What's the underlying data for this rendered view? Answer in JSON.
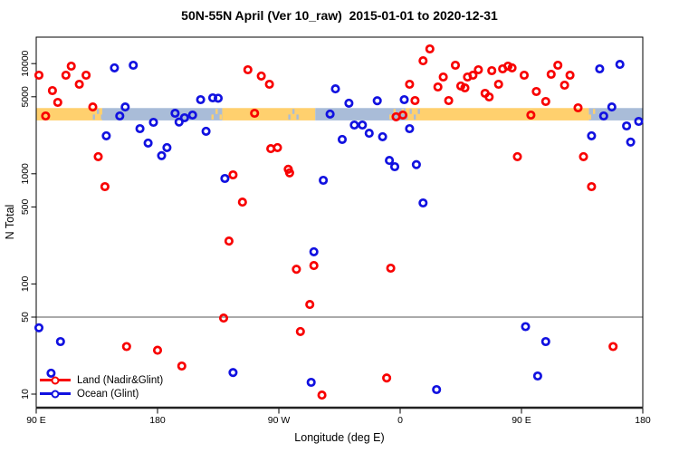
{
  "chart_data": {
    "type": "scatter",
    "title": "50N-55N April (Ver 10_raw)  2015-01-01 to 2020-12-31",
    "xlabel": "Longitude (deg E)",
    "ylabel": "N Total",
    "x_axis": {
      "note": "longitude axis runs eastward from 90E, wrapping past 180 and 0 back to 180",
      "range_deg_continuous": [
        90,
        540
      ],
      "ticks": [
        {
          "deg": 90,
          "label": "90 E"
        },
        {
          "deg": 180,
          "label": "180"
        },
        {
          "deg": 270,
          "label": "90 W"
        },
        {
          "deg": 360,
          "label": "0"
        },
        {
          "deg": 450,
          "label": "90 E"
        },
        {
          "deg": 540,
          "label": "180"
        }
      ]
    },
    "y_axis": {
      "scale": "log10",
      "range": [
        7.5,
        17500
      ],
      "ticks": [
        {
          "value": 10,
          "label": "10"
        },
        {
          "value": 50,
          "label": "50"
        },
        {
          "value": 100,
          "label": "100"
        },
        {
          "value": 500,
          "label": "500"
        },
        {
          "value": 1000,
          "label": "1000"
        },
        {
          "value": 5000,
          "label": "5000"
        },
        {
          "value": 10000,
          "label": "10000"
        }
      ]
    },
    "hline": {
      "value": 50,
      "color": "#777777"
    },
    "band": {
      "description": "dense overplotted band of points near N Total 3000-4000 spanning all longitudes",
      "value_top": 3950,
      "value_bottom": 3050,
      "colors": {
        "land": "#FFD06E",
        "ocean": "#A9BCD8"
      },
      "segments": [
        {
          "from": 90,
          "to": 139,
          "color": "land"
        },
        {
          "from": 139,
          "to": 228,
          "color": "ocean"
        },
        {
          "from": 228,
          "to": 297,
          "color": "land"
        },
        {
          "from": 297,
          "to": 364,
          "color": "ocean"
        },
        {
          "from": 364,
          "to": 500,
          "color": "land"
        },
        {
          "from": 500,
          "to": 540,
          "color": "ocean"
        }
      ],
      "speckle_zones": [
        {
          "from": 132,
          "to": 140,
          "overlay": "ocean"
        },
        {
          "from": 220,
          "to": 229,
          "overlay": "land"
        },
        {
          "from": 277,
          "to": 285,
          "overlay": "ocean"
        },
        {
          "from": 352,
          "to": 364,
          "overlay": "land"
        },
        {
          "from": 364,
          "to": 374,
          "overlay": "ocean"
        },
        {
          "from": 494,
          "to": 506,
          "overlay": "land"
        }
      ]
    },
    "series": [
      {
        "name": "Land (Nadir&Glint)",
        "color": "#F80000",
        "points": [
          [
            92,
            7850
          ],
          [
            102,
            5690
          ],
          [
            106,
            4450
          ],
          [
            112,
            7850
          ],
          [
            116,
            9480
          ],
          [
            122,
            6490
          ],
          [
            127,
            7850
          ],
          [
            132,
            4040
          ],
          [
            97,
            3350
          ],
          [
            136,
            1430
          ],
          [
            141,
            764
          ],
          [
            236,
            977
          ],
          [
            243,
            553
          ],
          [
            233,
            245
          ],
          [
            247,
            8790
          ],
          [
            257,
            7710
          ],
          [
            263,
            6490
          ],
          [
            252,
            3540
          ],
          [
            264,
            1690
          ],
          [
            269,
            1730
          ],
          [
            277,
            1100
          ],
          [
            278,
            1020
          ],
          [
            283,
            136
          ],
          [
            296,
            147
          ],
          [
            293,
            65
          ],
          [
            353,
            139
          ],
          [
            357,
            3290
          ],
          [
            362,
            3410
          ],
          [
            367,
            6490
          ],
          [
            371,
            4620
          ],
          [
            377,
            10600
          ],
          [
            382,
            13600
          ],
          [
            388,
            6140
          ],
          [
            392,
            7550
          ],
          [
            396,
            4620
          ],
          [
            401,
            9660
          ],
          [
            405,
            6260
          ],
          [
            408,
            6020
          ],
          [
            410,
            7550
          ],
          [
            414,
            7850
          ],
          [
            418,
            8790
          ],
          [
            423,
            5370
          ],
          [
            426,
            4980
          ],
          [
            428,
            8630
          ],
          [
            433,
            6490
          ],
          [
            436,
            8960
          ],
          [
            440,
            9480
          ],
          [
            443,
            9140
          ],
          [
            447,
            1430
          ],
          [
            452,
            7850
          ],
          [
            457,
            3410
          ],
          [
            461,
            5580
          ],
          [
            468,
            4530
          ],
          [
            472,
            8000
          ],
          [
            477,
            9660
          ],
          [
            482,
            6370
          ],
          [
            486,
            7850
          ],
          [
            492,
            3970
          ],
          [
            496,
            1430
          ],
          [
            502,
            764
          ],
          [
            157,
            27
          ],
          [
            180,
            25
          ],
          [
            198,
            18
          ],
          [
            229,
            49
          ],
          [
            286,
            37
          ],
          [
            302,
            9.8
          ],
          [
            350,
            14
          ],
          [
            518,
            27
          ]
        ]
      },
      {
        "name": "Ocean (Glint)",
        "color": "#1111E0",
        "points": [
          [
            148,
            9140
          ],
          [
            162,
            9660
          ],
          [
            156,
            4040
          ],
          [
            152,
            3350
          ],
          [
            167,
            2570
          ],
          [
            177,
            2930
          ],
          [
            173,
            1900
          ],
          [
            187,
            1730
          ],
          [
            183,
            1460
          ],
          [
            142,
            2210
          ],
          [
            193,
            3540
          ],
          [
            196,
            2950
          ],
          [
            200,
            3220
          ],
          [
            206,
            3410
          ],
          [
            212,
            4710
          ],
          [
            221,
            4890
          ],
          [
            225,
            4850
          ],
          [
            216,
            2430
          ],
          [
            230,
            906
          ],
          [
            296,
            196
          ],
          [
            303,
            873
          ],
          [
            308,
            3480
          ],
          [
            312,
            5900
          ],
          [
            317,
            2050
          ],
          [
            322,
            4370
          ],
          [
            326,
            2770
          ],
          [
            332,
            2770
          ],
          [
            337,
            2330
          ],
          [
            343,
            4600
          ],
          [
            347,
            2170
          ],
          [
            352,
            1320
          ],
          [
            356,
            1160
          ],
          [
            363,
            4710
          ],
          [
            367,
            2570
          ],
          [
            372,
            1210
          ],
          [
            377,
            543
          ],
          [
            502,
            2210
          ],
          [
            508,
            8960
          ],
          [
            511,
            3350
          ],
          [
            517,
            4040
          ],
          [
            523,
            9840
          ],
          [
            528,
            2720
          ],
          [
            531,
            1940
          ],
          [
            537,
            2990
          ],
          [
            92,
            40
          ],
          [
            101,
            15.5
          ],
          [
            108,
            30
          ],
          [
            236,
            15.7
          ],
          [
            294,
            12.8
          ],
          [
            387,
            11
          ],
          [
            453,
            41
          ],
          [
            462,
            14.6
          ],
          [
            468,
            30
          ]
        ]
      }
    ],
    "legend": {
      "position": "bottom-left",
      "border": "none"
    }
  }
}
